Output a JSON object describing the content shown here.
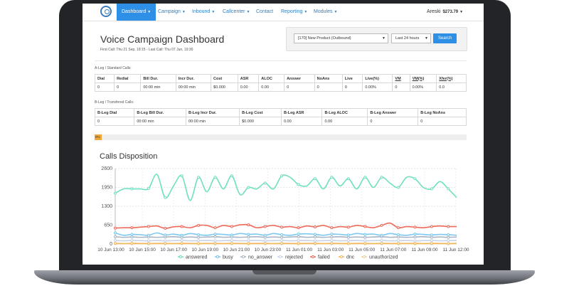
{
  "nav": {
    "items": [
      {
        "label": "Dashboard",
        "active": true,
        "caret": true
      },
      {
        "label": "Campaign",
        "active": false,
        "caret": true
      },
      {
        "label": "Inbound",
        "active": false,
        "caret": true
      },
      {
        "label": "Callcenter",
        "active": false,
        "caret": true
      },
      {
        "label": "Contact",
        "active": false,
        "caret": false
      },
      {
        "label": "Reporting",
        "active": false,
        "caret": true
      },
      {
        "label": "Modules",
        "active": false,
        "caret": true
      }
    ],
    "user_name": "Areski",
    "user_balance": "$273.79"
  },
  "header": {
    "title": "Voice Campaign Dashboard",
    "subtitle": "First Call: Thu 21 Sep, 18:15 - Last Call: Thu 07 Jun, 19:30"
  },
  "filters": {
    "campaign": "[170] New Product (Outbound)",
    "period": "Last 24 hours",
    "search_label": "Search"
  },
  "a_leg": {
    "label": "A-Leg / Standard Calls:",
    "headers": [
      "Dial",
      "Redial",
      "Bill Dur.",
      "Incr Dur.",
      "Cost",
      "ASR",
      "ALOC",
      "Answer",
      "NoAns",
      "Live",
      "Live(%)",
      "VM",
      "VM(%)",
      "Xfer(%)"
    ],
    "values": [
      "0",
      "0",
      "00:00 min",
      "00:00 min",
      "$0.000",
      "0.00",
      "0.00",
      "0",
      "0",
      "0",
      "0.00%",
      "0",
      "0.00%",
      "0.0"
    ]
  },
  "b_leg": {
    "label": "B-Leg / Transfered Calls:",
    "headers": [
      "B-Leg Dial",
      "B-Leg Bill Dur.",
      "B-Leg Incr Dur.",
      "B-Leg Cost",
      "B-Leg ASR",
      "B-Leg ALOC",
      "B-Leg Answer",
      "B-Leg NoAns"
    ],
    "values": [
      "0",
      "00:00 min",
      "00:00 min",
      "$0.000",
      "0.00",
      "0.00",
      "0",
      "0"
    ]
  },
  "progress": {
    "label": "0%",
    "fraction": 0.02
  },
  "chart_title": "Calls Disposition",
  "chart_data": {
    "type": "line",
    "title": "Calls Disposition",
    "ylim": [
      0,
      2600
    ],
    "yticks": [
      "2600",
      "1950",
      "1300",
      "650",
      "0"
    ],
    "x_labels": [
      "10 Jun 13:00",
      "10 Jun 15:00",
      "10 Jun 17:00",
      "10 Jun 19:00",
      "10 Jun 21:00",
      "10 Jun 23:00",
      "11 Jun 01:00",
      "11 Jun 03:00",
      "11 Jun 05:00",
      "11 Jun 07:00",
      "11 Jun 09:00",
      "11 Jun 12:00"
    ],
    "grid": true,
    "legend_position": "bottom",
    "series": [
      {
        "name": "answered",
        "color": "#6fe0c0",
        "values": [
          1750,
          1900,
          1900,
          1900,
          1910,
          2400,
          1600,
          2000,
          2350,
          1500,
          2300,
          1800,
          2300,
          1900,
          2350,
          1700,
          1950,
          1900,
          2100,
          1900,
          2350,
          2300,
          2050,
          2000,
          2250,
          1900,
          2300,
          2000,
          2250,
          1900,
          2300,
          1950,
          2300,
          2100,
          1950,
          2300,
          2250,
          1950,
          1900,
          2150,
          1900,
          1600
        ]
      },
      {
        "name": "busy",
        "color": "#7cc8ef",
        "values": [
          380,
          300,
          330,
          320,
          300,
          380,
          310,
          340,
          300,
          360,
          320,
          300,
          340,
          330,
          310,
          360,
          330,
          340,
          300,
          360,
          320,
          300,
          340,
          350,
          330,
          300,
          340,
          330,
          310,
          360,
          330,
          340,
          300,
          360,
          320,
          300,
          340,
          330,
          310,
          330,
          320,
          300
        ]
      },
      {
        "name": "no_answer",
        "color": "#a9b4c4",
        "values": [
          250,
          230,
          240,
          230,
          240,
          230,
          240,
          250,
          230,
          240,
          230,
          240,
          250,
          230,
          240,
          230,
          240,
          250,
          230,
          240,
          230,
          240,
          250,
          230,
          240,
          230,
          240,
          250,
          230,
          240,
          230,
          240,
          250,
          230,
          240,
          230,
          240,
          250,
          230,
          240,
          230,
          240
        ]
      },
      {
        "name": "rejected",
        "color": "#c7d3e8",
        "values": [
          120,
          110,
          120,
          115,
          110,
          120,
          110,
          115,
          120,
          110,
          115,
          120,
          110,
          115,
          120,
          110,
          115,
          120,
          110,
          115,
          120,
          110,
          115,
          120,
          110,
          115,
          120,
          110,
          115,
          120,
          110,
          115,
          120,
          110,
          115,
          120,
          110,
          115,
          120,
          110,
          115,
          120
        ]
      },
      {
        "name": "failed",
        "color": "#ef6a5a",
        "values": [
          550,
          560,
          560,
          580,
          600,
          620,
          540,
          590,
          600,
          560,
          640,
          640,
          560,
          640,
          600,
          660,
          660,
          560,
          600,
          640,
          580,
          600,
          560,
          620,
          590,
          640,
          560,
          600,
          580,
          640,
          600,
          560,
          640,
          720,
          560,
          600,
          580,
          560,
          600,
          620,
          600,
          600
        ]
      },
      {
        "name": "dnc",
        "color": "#f2b75c",
        "values": [
          20,
          15,
          20,
          18,
          15,
          20,
          18,
          15,
          20,
          18,
          15,
          20,
          18,
          15,
          20,
          18,
          15,
          20,
          18,
          15,
          20,
          18,
          15,
          20,
          18,
          15,
          20,
          18,
          15,
          20,
          18,
          15,
          20,
          18,
          15,
          20,
          18,
          15,
          20,
          18,
          15,
          20
        ]
      },
      {
        "name": "unauthorized",
        "color": "#ecd19a",
        "values": [
          8,
          6,
          8,
          7,
          6,
          8,
          7,
          6,
          8,
          7,
          6,
          8,
          7,
          6,
          8,
          7,
          6,
          8,
          7,
          6,
          8,
          7,
          6,
          8,
          7,
          6,
          8,
          7,
          6,
          8,
          7,
          6,
          8,
          7,
          6,
          8,
          7,
          6,
          8,
          7,
          6,
          8
        ]
      }
    ]
  }
}
